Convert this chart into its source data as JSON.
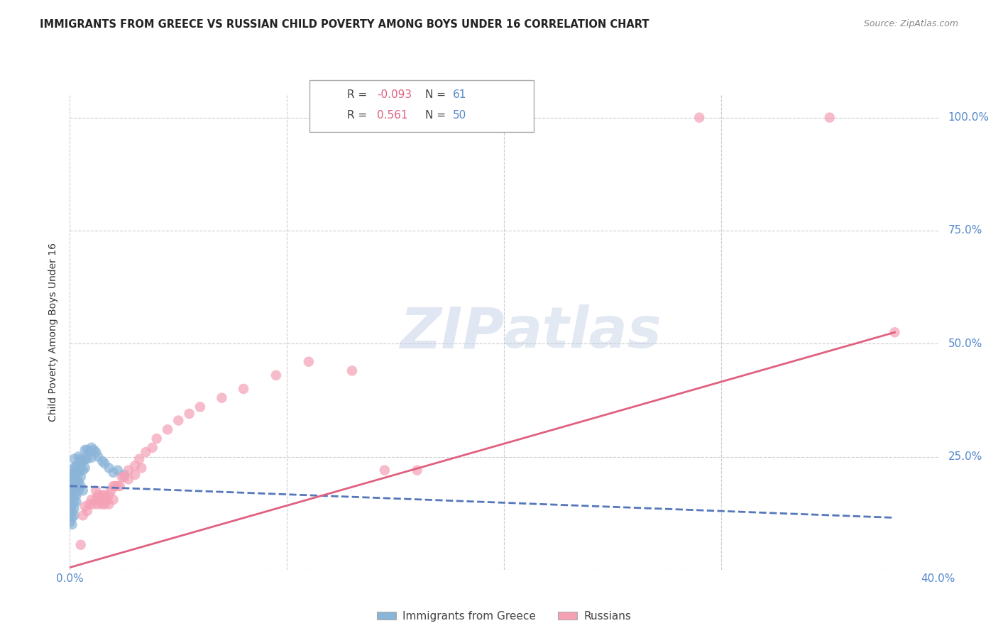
{
  "title": "IMMIGRANTS FROM GREECE VS RUSSIAN CHILD POVERTY AMONG BOYS UNDER 16 CORRELATION CHART",
  "source": "Source: ZipAtlas.com",
  "ylabel": "Child Poverty Among Boys Under 16",
  "xlim": [
    0.0,
    0.4
  ],
  "ylim": [
    0.0,
    1.05
  ],
  "background_color": "#ffffff",
  "legend_R1": "-0.093",
  "legend_N1": "61",
  "legend_R2": "0.561",
  "legend_N2": "50",
  "blue_color": "#8ab4d8",
  "pink_color": "#f4a0b5",
  "blue_line_color": "#5577bb",
  "pink_line_color": "#e06080",
  "blue_scatter": [
    [
      0.0,
      0.21
    ],
    [
      0.0,
      0.195
    ],
    [
      0.0,
      0.18
    ],
    [
      0.0,
      0.165
    ],
    [
      0.0,
      0.15
    ],
    [
      0.0,
      0.135
    ],
    [
      0.0,
      0.12
    ],
    [
      0.0,
      0.105
    ],
    [
      0.001,
      0.22
    ],
    [
      0.001,
      0.205
    ],
    [
      0.001,
      0.19
    ],
    [
      0.001,
      0.175
    ],
    [
      0.001,
      0.16
    ],
    [
      0.001,
      0.145
    ],
    [
      0.001,
      0.13
    ],
    [
      0.001,
      0.115
    ],
    [
      0.001,
      0.1
    ],
    [
      0.002,
      0.245
    ],
    [
      0.002,
      0.225
    ],
    [
      0.002,
      0.21
    ],
    [
      0.002,
      0.195
    ],
    [
      0.002,
      0.18
    ],
    [
      0.002,
      0.165
    ],
    [
      0.002,
      0.15
    ],
    [
      0.002,
      0.135
    ],
    [
      0.002,
      0.12
    ],
    [
      0.003,
      0.23
    ],
    [
      0.003,
      0.215
    ],
    [
      0.003,
      0.2
    ],
    [
      0.003,
      0.185
    ],
    [
      0.003,
      0.165
    ],
    [
      0.003,
      0.15
    ],
    [
      0.004,
      0.25
    ],
    [
      0.004,
      0.235
    ],
    [
      0.004,
      0.215
    ],
    [
      0.004,
      0.195
    ],
    [
      0.004,
      0.175
    ],
    [
      0.005,
      0.245
    ],
    [
      0.005,
      0.225
    ],
    [
      0.005,
      0.205
    ],
    [
      0.005,
      0.185
    ],
    [
      0.006,
      0.24
    ],
    [
      0.006,
      0.22
    ],
    [
      0.006,
      0.175
    ],
    [
      0.007,
      0.265
    ],
    [
      0.007,
      0.245
    ],
    [
      0.007,
      0.225
    ],
    [
      0.008,
      0.265
    ],
    [
      0.008,
      0.245
    ],
    [
      0.009,
      0.26
    ],
    [
      0.01,
      0.27
    ],
    [
      0.01,
      0.248
    ],
    [
      0.011,
      0.265
    ],
    [
      0.012,
      0.26
    ],
    [
      0.013,
      0.25
    ],
    [
      0.015,
      0.24
    ],
    [
      0.016,
      0.235
    ],
    [
      0.018,
      0.225
    ],
    [
      0.02,
      0.215
    ],
    [
      0.022,
      0.22
    ],
    [
      0.025,
      0.21
    ]
  ],
  "pink_scatter": [
    [
      0.005,
      0.055
    ],
    [
      0.006,
      0.12
    ],
    [
      0.007,
      0.14
    ],
    [
      0.008,
      0.13
    ],
    [
      0.009,
      0.145
    ],
    [
      0.01,
      0.155
    ],
    [
      0.011,
      0.145
    ],
    [
      0.012,
      0.155
    ],
    [
      0.012,
      0.175
    ],
    [
      0.013,
      0.165
    ],
    [
      0.013,
      0.145
    ],
    [
      0.014,
      0.155
    ],
    [
      0.015,
      0.165
    ],
    [
      0.015,
      0.145
    ],
    [
      0.016,
      0.165
    ],
    [
      0.016,
      0.145
    ],
    [
      0.017,
      0.155
    ],
    [
      0.018,
      0.165
    ],
    [
      0.018,
      0.145
    ],
    [
      0.019,
      0.175
    ],
    [
      0.02,
      0.185
    ],
    [
      0.02,
      0.155
    ],
    [
      0.021,
      0.185
    ],
    [
      0.022,
      0.185
    ],
    [
      0.023,
      0.185
    ],
    [
      0.024,
      0.205
    ],
    [
      0.025,
      0.205
    ],
    [
      0.027,
      0.22
    ],
    [
      0.027,
      0.2
    ],
    [
      0.03,
      0.23
    ],
    [
      0.03,
      0.21
    ],
    [
      0.032,
      0.245
    ],
    [
      0.033,
      0.225
    ],
    [
      0.035,
      0.26
    ],
    [
      0.038,
      0.27
    ],
    [
      0.04,
      0.29
    ],
    [
      0.045,
      0.31
    ],
    [
      0.05,
      0.33
    ],
    [
      0.055,
      0.345
    ],
    [
      0.06,
      0.36
    ],
    [
      0.07,
      0.38
    ],
    [
      0.08,
      0.4
    ],
    [
      0.095,
      0.43
    ],
    [
      0.11,
      0.46
    ],
    [
      0.13,
      0.44
    ],
    [
      0.145,
      0.22
    ],
    [
      0.16,
      0.22
    ],
    [
      0.29,
      1.0
    ],
    [
      0.35,
      1.0
    ],
    [
      0.38,
      0.525
    ]
  ],
  "blue_trendline_x": [
    0.0,
    0.38
  ],
  "blue_trendline_y": [
    0.185,
    0.115
  ],
  "pink_trendline_x": [
    0.0,
    0.38
  ],
  "pink_trendline_y": [
    0.005,
    0.525
  ],
  "grid_yticks": [
    0.0,
    0.25,
    0.5,
    0.75,
    1.0
  ],
  "grid_xticks": [
    0.0,
    0.1,
    0.2,
    0.3,
    0.4
  ]
}
